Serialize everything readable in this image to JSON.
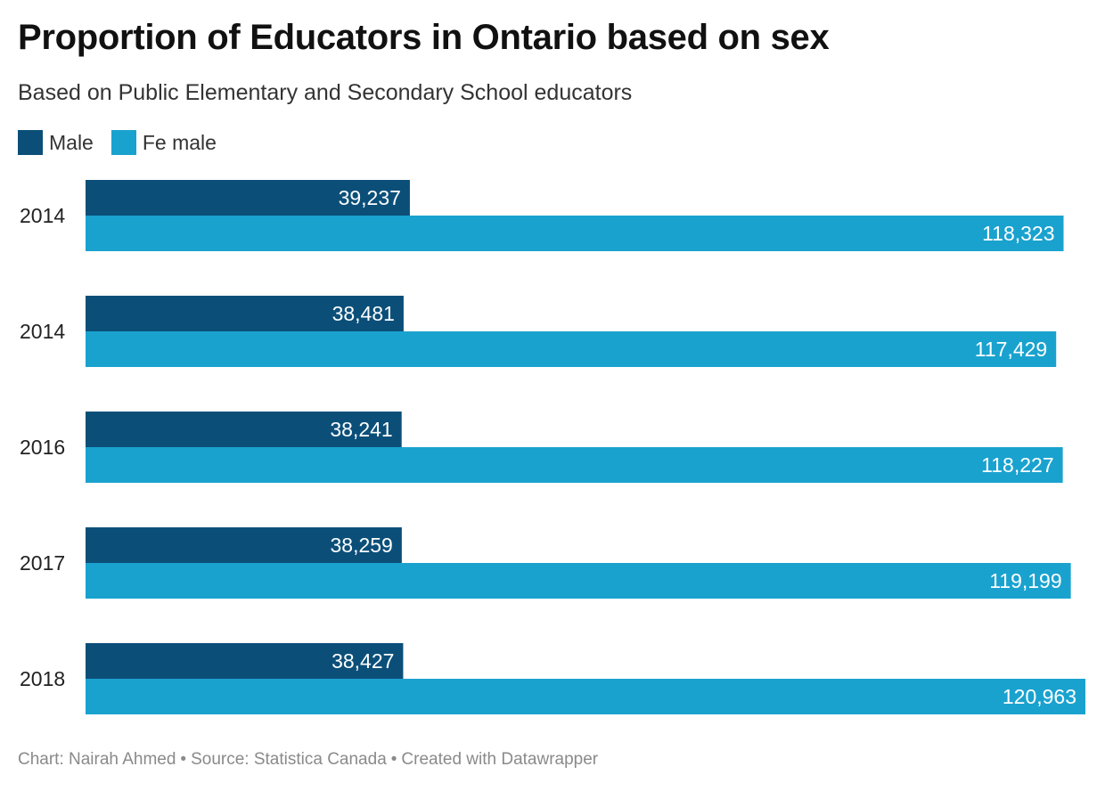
{
  "title": "Proportion of Educators in Ontario based on sex",
  "subtitle": "Based on Public Elementary and Secondary School educators",
  "legend": [
    {
      "label": "Male",
      "color": "#0b4f79"
    },
    {
      "label": "Fe male",
      "color": "#1aa2cf"
    }
  ],
  "chart_data": {
    "type": "bar",
    "orientation": "horizontal",
    "categories": [
      "2014",
      "2014",
      "2016",
      "2017",
      "2018"
    ],
    "series": [
      {
        "name": "Male",
        "color": "#0b4f79",
        "values": [
          39237,
          38481,
          38241,
          38259,
          38427
        ]
      },
      {
        "name": "Fe male",
        "color": "#1aa2cf",
        "values": [
          118323,
          117429,
          118227,
          119199,
          120963
        ]
      }
    ],
    "value_labels": [
      [
        "39,237",
        "118,323"
      ],
      [
        "38,481",
        "117,429"
      ],
      [
        "38,241",
        "118,227"
      ],
      [
        "38,259",
        "119,199"
      ],
      [
        "38,427",
        "120,963"
      ]
    ],
    "xlim": [
      0,
      120963
    ],
    "grid": false
  },
  "footer": {
    "chart": "Chart: Nairah Ahmed",
    "source": "Source: Statistica Canada",
    "created": "Created with Datawrapper",
    "separator": "•"
  }
}
